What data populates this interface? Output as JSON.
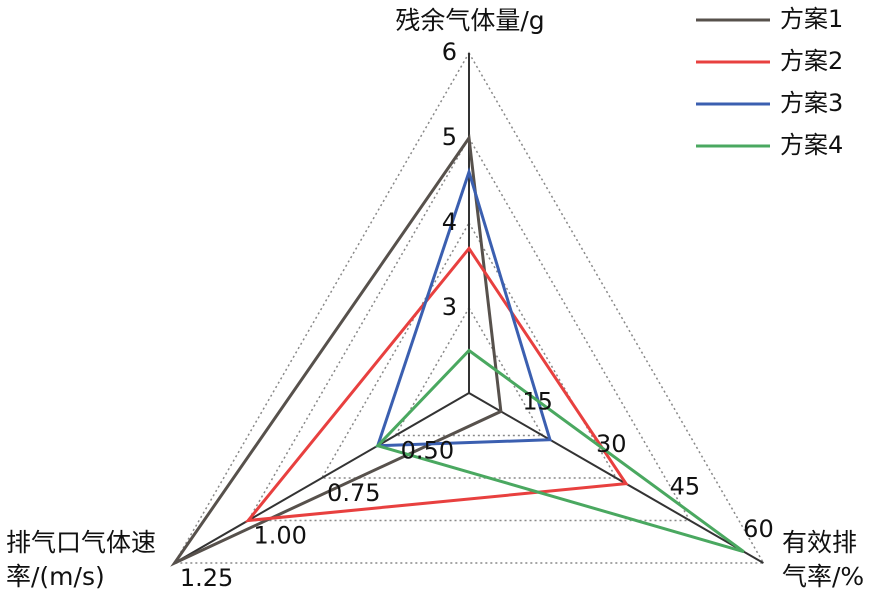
{
  "chart_data": {
    "type": "radar",
    "axes": [
      {
        "label": "残余气体量/g",
        "lim": [
          2,
          6
        ],
        "ticks": [
          3,
          4,
          5,
          6
        ]
      },
      {
        "label": "有效排气率/%",
        "lim": [
          0,
          60
        ],
        "ticks": [
          15,
          30,
          45,
          60
        ]
      },
      {
        "label": "排气口气体速率/(m/s)",
        "lim": [
          0.25,
          1.25
        ],
        "ticks": [
          {
            "value": 0.5,
            "label": "0.50"
          },
          0.75,
          {
            "value": 1,
            "label": "1.00"
          },
          1.25
        ]
      }
    ],
    "series": [
      {
        "name": "方案1",
        "color": "#57514c",
        "values": [
          5.0,
          6.5,
          1.25
        ]
      },
      {
        "name": "方案2",
        "color": "#e8403f",
        "values": [
          3.7,
          32,
          1.0
        ]
      },
      {
        "name": "方案3",
        "color": "#3b5fb0",
        "values": [
          4.6,
          16.5,
          0.56
        ]
      },
      {
        "name": "方案4",
        "color": "#4aa860",
        "values": [
          2.5,
          56,
          0.56
        ]
      }
    ],
    "grid": true
  }
}
